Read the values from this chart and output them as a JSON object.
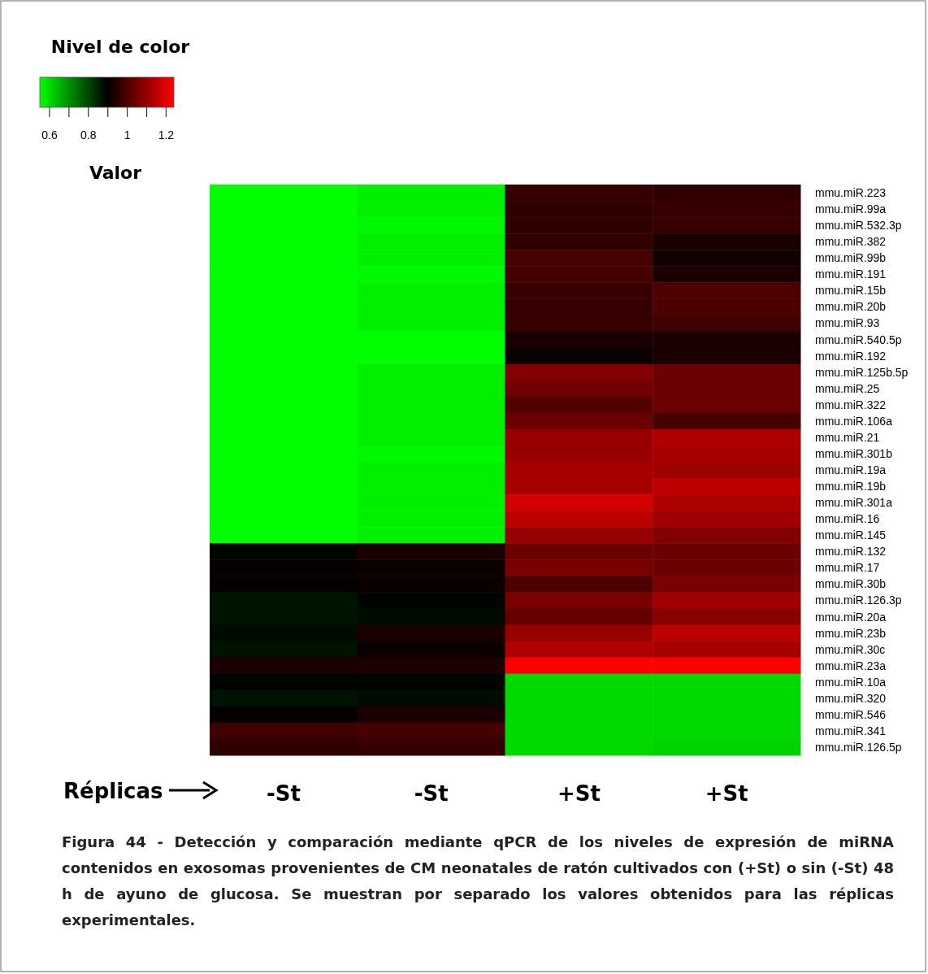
{
  "chart_data": {
    "type": "heatmap",
    "title": "Nivel de color",
    "clabel": "Valor",
    "categories": [
      "-St",
      "-St",
      "+St",
      "+St"
    ],
    "y_categories": [
      "mmu.miR.223",
      "mmu.miR.99a",
      "mmu.miR.532.3p",
      "mmu.miR.382",
      "mmu.miR.99b",
      "mmu.miR.191",
      "mmu.miR.15b",
      "mmu.miR.20b",
      "mmu.miR.93",
      "mmu.miR.540.5p",
      "mmu.miR.192",
      "mmu.miR.125b.5p",
      "mmu.miR.25",
      "mmu.miR.322",
      "mmu.miR.106a",
      "mmu.miR.21",
      "mmu.miR.301b",
      "mmu.miR.19a",
      "mmu.miR.19b",
      "mmu.miR.301a",
      "mmu.miR.16",
      "mmu.miR.145",
      "mmu.miR.132",
      "mmu.miR.17",
      "mmu.miR.30b",
      "mmu.miR.126.3p",
      "mmu.miR.20a",
      "mmu.miR.23b",
      "mmu.miR.30c",
      "mmu.miR.23a",
      "mmu.miR.10a",
      "mmu.miR.320",
      "mmu.miR.546",
      "mmu.miR.341",
      "mmu.miR.126.5p"
    ],
    "cells": [
      [
        0.55,
        0.57,
        0.97,
        0.96
      ],
      [
        0.55,
        0.57,
        0.96,
        0.97
      ],
      [
        0.55,
        0.56,
        0.96,
        0.97
      ],
      [
        0.55,
        0.57,
        0.96,
        0.93
      ],
      [
        0.55,
        0.57,
        0.99,
        0.92
      ],
      [
        0.55,
        0.56,
        0.99,
        0.93
      ],
      [
        0.55,
        0.57,
        0.97,
        1.0
      ],
      [
        0.55,
        0.57,
        0.97,
        1.0
      ],
      [
        0.55,
        0.57,
        0.97,
        0.98
      ],
      [
        0.55,
        0.55,
        0.93,
        0.93
      ],
      [
        0.55,
        0.55,
        0.91,
        0.93
      ],
      [
        0.55,
        0.57,
        1.07,
        1.04
      ],
      [
        0.55,
        0.57,
        1.05,
        1.04
      ],
      [
        0.55,
        0.57,
        1.01,
        1.04
      ],
      [
        0.55,
        0.57,
        1.04,
        0.99
      ],
      [
        0.55,
        0.57,
        1.1,
        1.13
      ],
      [
        0.55,
        0.56,
        1.1,
        1.12
      ],
      [
        0.55,
        0.57,
        1.12,
        1.11
      ],
      [
        0.55,
        0.57,
        1.12,
        1.15
      ],
      [
        0.55,
        0.57,
        1.18,
        1.13
      ],
      [
        0.55,
        0.57,
        1.15,
        1.11
      ],
      [
        0.55,
        0.57,
        1.1,
        1.07
      ],
      [
        0.89,
        0.93,
        1.04,
        1.04
      ],
      [
        0.9,
        0.91,
        1.06,
        1.04
      ],
      [
        0.9,
        0.91,
        1.0,
        1.06
      ],
      [
        0.87,
        0.89,
        1.06,
        1.11
      ],
      [
        0.87,
        0.88,
        1.03,
        1.08
      ],
      [
        0.88,
        0.93,
        1.1,
        1.15
      ],
      [
        0.87,
        0.91,
        1.13,
        1.12
      ],
      [
        0.93,
        0.93,
        1.24,
        1.24
      ],
      [
        0.89,
        0.89,
        0.6,
        0.6
      ],
      [
        0.87,
        0.88,
        0.6,
        0.6
      ],
      [
        0.9,
        0.93,
        0.6,
        0.6
      ],
      [
        0.98,
        0.99,
        0.6,
        0.6
      ],
      [
        0.96,
        0.97,
        0.6,
        0.61
      ]
    ],
    "clim": [
      0.55,
      1.24
    ],
    "cticks": [
      0.6,
      {
        "value": 0.7,
        "label": null
      },
      0.8,
      {
        "value": 0.9,
        "label": null
      },
      1,
      {
        "value": 1.1,
        "label": null
      },
      1.2
    ],
    "annotations": [
      "Réplicas",
      "Figura 44 - Detección y comparación mediante qPCR de los niveles de expresión de miRNA contenidos en exosomas provenientes de CM neonatales de ratón cultivados con (+St) o sin (-St) 48 h de ayuno de glucosa. Se muestran por separado los valores obtenidos para las réplicas experimentales."
    ]
  }
}
